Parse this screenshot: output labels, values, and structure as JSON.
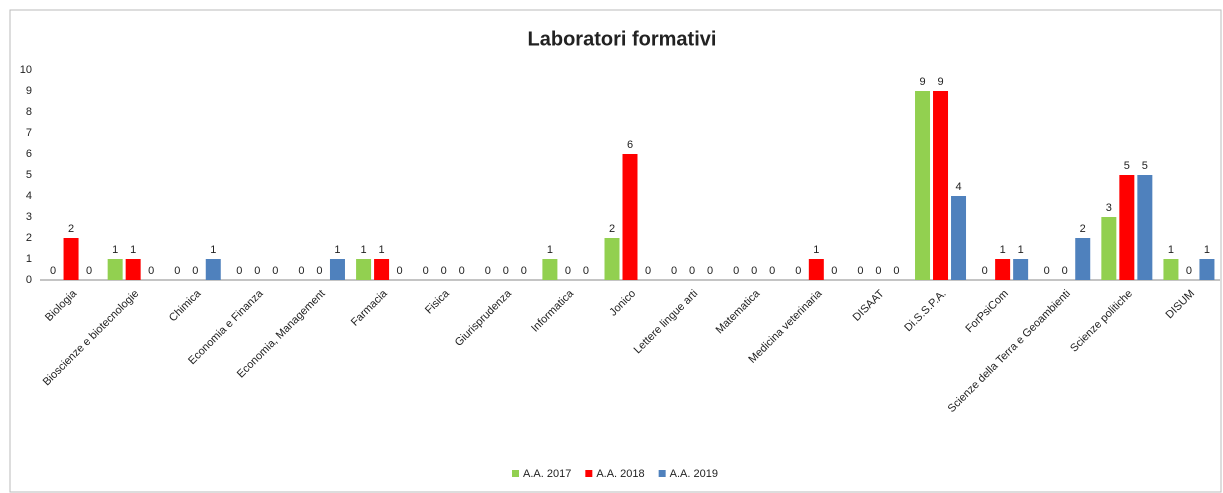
{
  "chart_data": {
    "type": "bar",
    "title": "Laboratori formativi",
    "categories": [
      "Biologia",
      "Bioscienze e biotecnologie",
      "Chimica",
      "Economia e Finanza",
      "Economia, Management",
      "Farmacia",
      "Fisica",
      "Giurisprudenza",
      "Informatica",
      "Jonico",
      "Lettere lingue arti",
      "Matematica",
      "Medicina veterinaria",
      "DISAAT",
      "Di.S.S.P.A.",
      "ForPsiCom",
      "Scienze della Terra e Geoambienti",
      "Scienze politiche",
      "DISUM"
    ],
    "series": [
      {
        "name": "A.A. 2017",
        "color": "#92d050",
        "values": [
          0,
          1,
          0,
          0,
          0,
          1,
          0,
          0,
          1,
          2,
          0,
          0,
          0,
          0,
          9,
          0,
          0,
          3,
          1
        ]
      },
      {
        "name": "A.A. 2018",
        "color": "#ff0000",
        "values": [
          2,
          1,
          0,
          0,
          0,
          1,
          0,
          0,
          0,
          6,
          0,
          0,
          1,
          0,
          9,
          1,
          0,
          5,
          0
        ]
      },
      {
        "name": "A.A. 2019",
        "color": "#4f81bd",
        "values": [
          0,
          0,
          1,
          0,
          1,
          0,
          0,
          0,
          0,
          0,
          0,
          0,
          0,
          0,
          4,
          1,
          2,
          5,
          1
        ]
      }
    ],
    "ylim": [
      0,
      10
    ],
    "yticks": [
      0,
      1,
      2,
      3,
      4,
      5,
      6,
      7,
      8,
      9,
      10
    ],
    "grid": false,
    "legend": "bottom"
  }
}
